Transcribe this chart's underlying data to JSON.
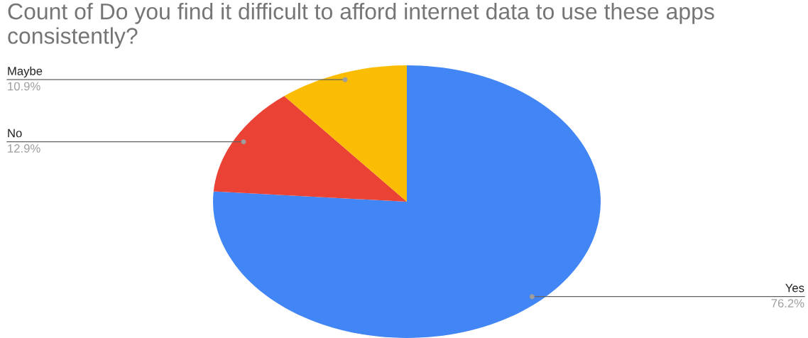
{
  "chart_data": {
    "type": "pie",
    "title": "Count of Do you find it difficult to afford internet data to use these apps consistently?",
    "categories": [
      "Yes",
      "No",
      "Maybe"
    ],
    "values": [
      76.2,
      12.9,
      10.9
    ],
    "value_labels": [
      "76.2%",
      "12.9%",
      "10.9%"
    ],
    "colors": [
      "#4285f4",
      "#ea4335",
      "#fbbc04"
    ]
  }
}
